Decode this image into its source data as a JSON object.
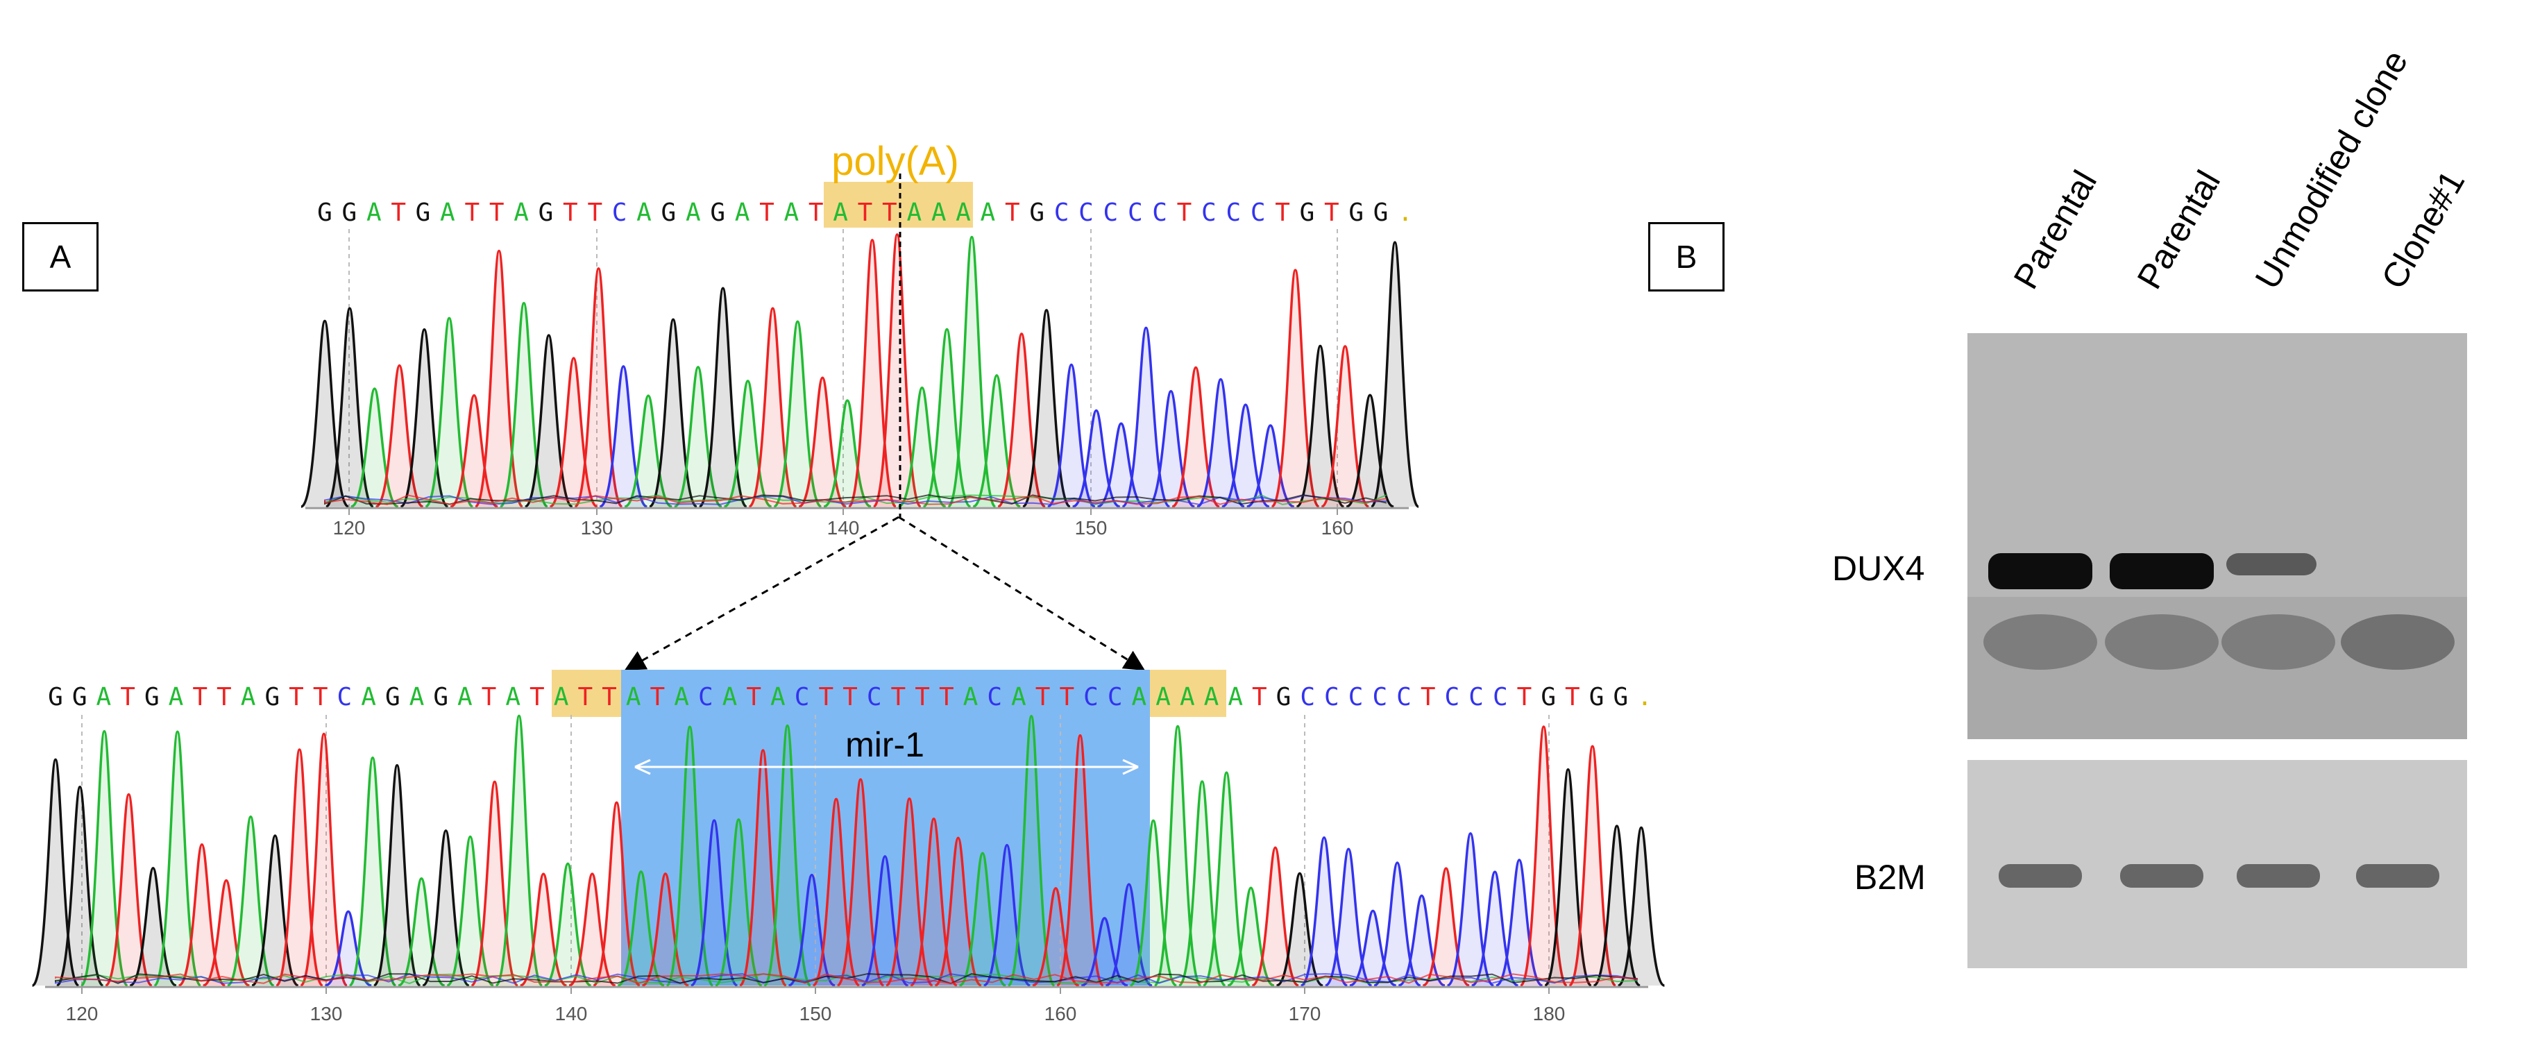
{
  "panel_a": {
    "label": "A",
    "polyA_label": "poly(A)",
    "mir_label": "mir-1",
    "top": {
      "sequence": "GGATGATTAGTTCAGAGATATATTAAAATGCCCCCTCCCTGTGG.",
      "axis_ticks": [
        "120",
        "130",
        "140",
        "150",
        "160"
      ]
    },
    "bottom": {
      "sequence": "GGATGATTAGTTCAGAGATATATTATACATACTTCTTTACATTCCAAAAATGCCCCCTCCCTGTGG.",
      "axis_ticks": [
        "120",
        "130",
        "140",
        "150",
        "160",
        "170",
        "180"
      ]
    },
    "colors": {
      "A": "#22bb33",
      "C": "#3333ee",
      "G": "#111111",
      "T": "#ee2222",
      "highlight": "#f5d78a",
      "polyA_text": "#f2b400",
      "insert": "#7fb9f4"
    }
  },
  "panel_b": {
    "label": "B",
    "lanes": [
      "Parental",
      "Parental",
      "Unmodified clone",
      "Clone#1"
    ],
    "bands": [
      "DUX4",
      "B2M"
    ]
  }
}
